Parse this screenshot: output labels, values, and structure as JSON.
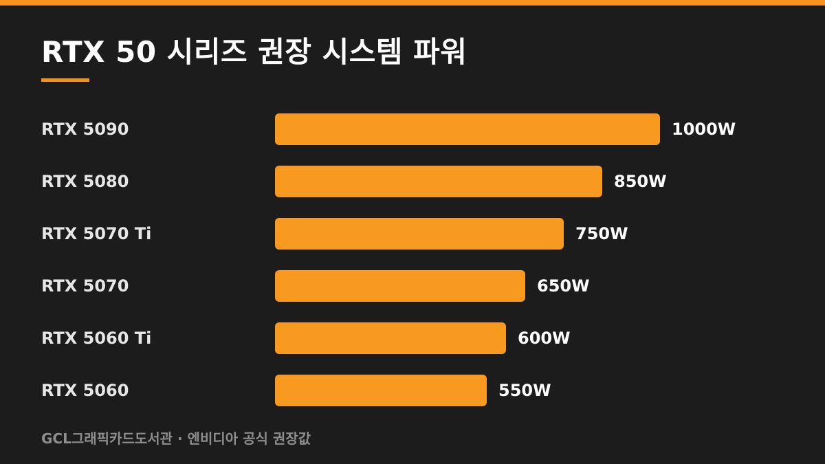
{
  "colors": {
    "background": "#1c1c1c",
    "accent": "#f7941d",
    "bar": "#f99a20",
    "text": "#ffffff",
    "muted": "#8e8e8e"
  },
  "title": "RTX 50 시리즈 권장 시스템 파워",
  "footer": "GCL그래픽카드도서관 · 엔비디아 공식 권장값",
  "chart_data": {
    "type": "bar",
    "orientation": "horizontal",
    "title": "RTX 50 시리즈 권장 시스템 파워",
    "categories": [
      "RTX 5090",
      "RTX 5080",
      "RTX 5070 Ti",
      "RTX 5070",
      "RTX 5060 Ti",
      "RTX 5060"
    ],
    "values": [
      1000,
      850,
      750,
      650,
      600,
      550
    ],
    "value_labels": [
      "1000W",
      "850W",
      "750W",
      "650W",
      "600W",
      "550W"
    ],
    "unit": "W",
    "xlim": [
      0,
      1000
    ],
    "grid": false,
    "legend": "none"
  }
}
